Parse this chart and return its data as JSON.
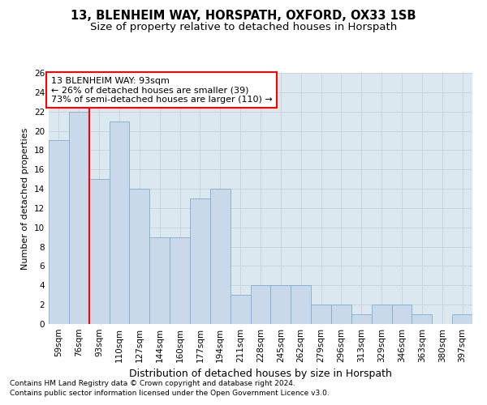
{
  "title1": "13, BLENHEIM WAY, HORSPATH, OXFORD, OX33 1SB",
  "title2": "Size of property relative to detached houses in Horspath",
  "xlabel": "Distribution of detached houses by size in Horspath",
  "ylabel": "Number of detached properties",
  "footnote1": "Contains HM Land Registry data © Crown copyright and database right 2024.",
  "footnote2": "Contains public sector information licensed under the Open Government Licence v3.0.",
  "categories": [
    "59sqm",
    "76sqm",
    "93sqm",
    "110sqm",
    "127sqm",
    "144sqm",
    "160sqm",
    "177sqm",
    "194sqm",
    "211sqm",
    "228sqm",
    "245sqm",
    "262sqm",
    "279sqm",
    "296sqm",
    "313sqm",
    "329sqm",
    "346sqm",
    "363sqm",
    "380sqm",
    "397sqm"
  ],
  "values": [
    19,
    22,
    15,
    21,
    14,
    9,
    9,
    13,
    14,
    3,
    4,
    4,
    4,
    2,
    2,
    1,
    2,
    2,
    1,
    0,
    1
  ],
  "bar_color": "#c9d9ea",
  "bar_edge_color": "#7aaed0",
  "vline_color": "red",
  "vline_x_index": 2,
  "annotation_line1": "13 BLENHEIM WAY: 93sqm",
  "annotation_line2": "← 26% of detached houses are smaller (39)",
  "annotation_line3": "73% of semi-detached houses are larger (110) →",
  "annotation_box_color": "white",
  "annotation_box_edge": "red",
  "ylim": [
    0,
    26
  ],
  "yticks": [
    0,
    2,
    4,
    6,
    8,
    10,
    12,
    14,
    16,
    18,
    20,
    22,
    24,
    26
  ],
  "grid_color": "#c8d4e0",
  "background_color": "#dce8f0",
  "title1_fontsize": 10.5,
  "title2_fontsize": 9.5,
  "xlabel_fontsize": 9,
  "ylabel_fontsize": 8,
  "tick_fontsize": 7.5,
  "annotation_fontsize": 8,
  "footnote_fontsize": 6.5
}
